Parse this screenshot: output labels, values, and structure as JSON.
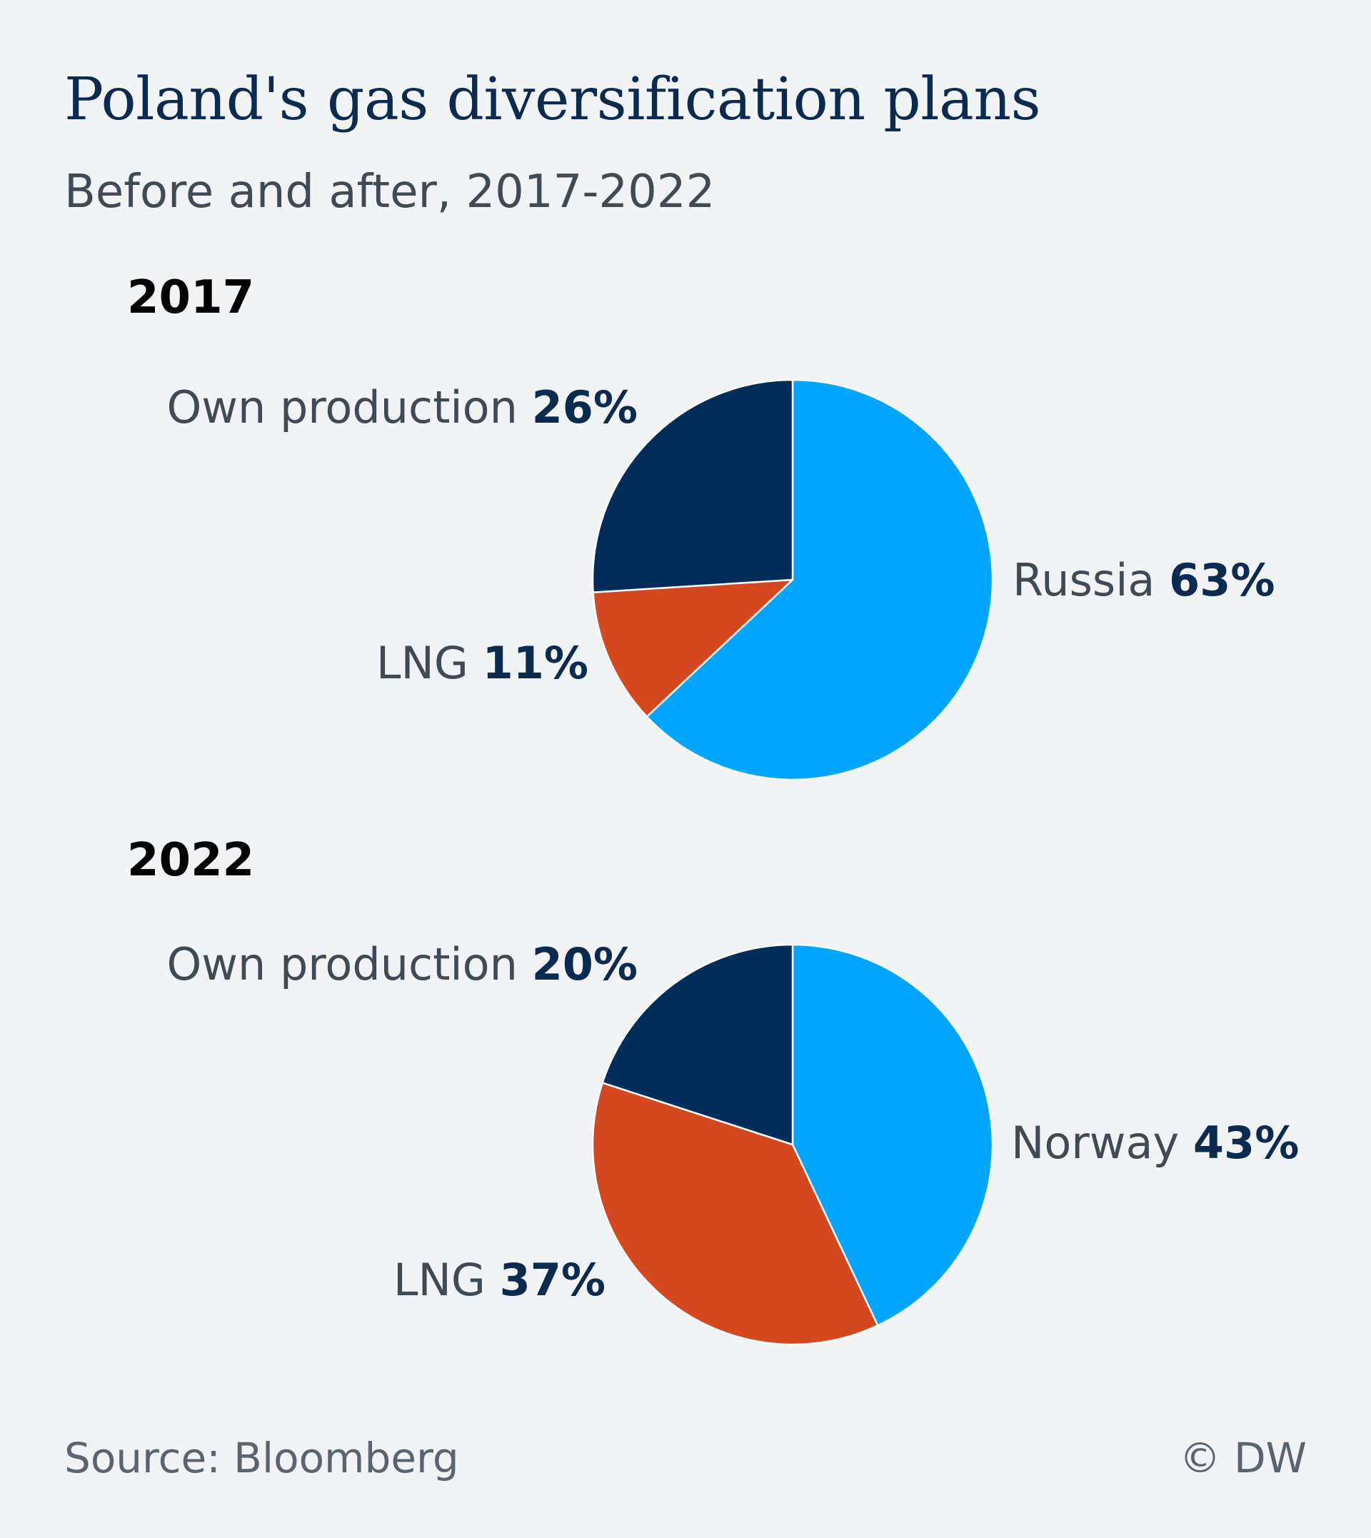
{
  "header": {
    "title": "Poland's gas diversification plans",
    "subtitle": "Before and after, 2017-2022"
  },
  "chart_data": [
    {
      "type": "pie",
      "title": "2017",
      "slices": [
        {
          "label": "Russia",
          "value": 63,
          "value_label": "63%",
          "color": "#00a5ff"
        },
        {
          "label": "LNG",
          "value": 11,
          "value_label": "11%",
          "color": "#d44820"
        },
        {
          "label": "Own production",
          "value": 26,
          "value_label": "26%",
          "color": "#002d5a"
        }
      ]
    },
    {
      "type": "pie",
      "title": "2022",
      "slices": [
        {
          "label": "Norway",
          "value": 43,
          "value_label": "43%",
          "color": "#00a5ff"
        },
        {
          "label": "LNG",
          "value": 37,
          "value_label": "37%",
          "color": "#d44820"
        },
        {
          "label": "Own production",
          "value": 20,
          "value_label": "20%",
          "color": "#002d5a"
        }
      ]
    }
  ],
  "footer": {
    "source": "Source: Bloomberg",
    "credit": "© DW"
  }
}
